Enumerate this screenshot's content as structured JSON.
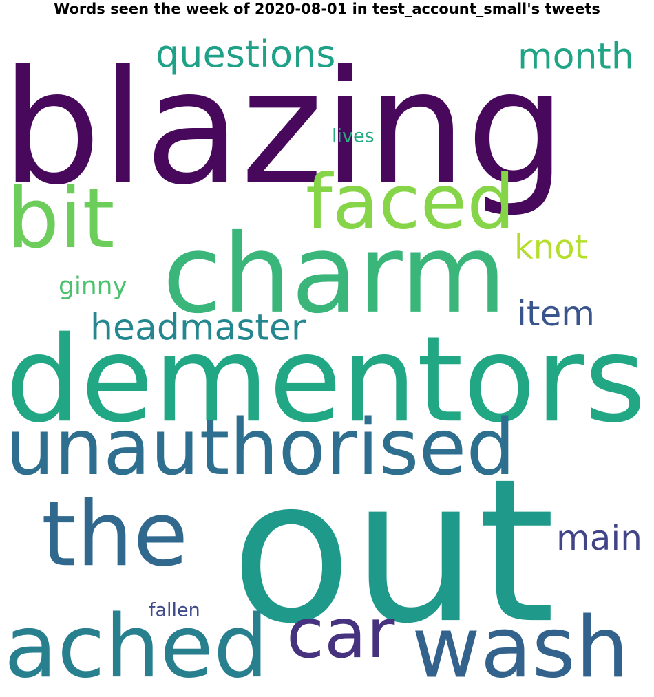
{
  "title": "Words seen the week of 2020-08-01 in test_account_small's tweets",
  "words": [
    {
      "text": "blazing",
      "color": "#48095d"
    },
    {
      "text": "out",
      "color": "#1f9a8a"
    },
    {
      "text": "dementors",
      "color": "#22a784"
    },
    {
      "text": "charm",
      "color": "#3bb67a"
    },
    {
      "text": "unauthorised",
      "color": "#2e6e8e"
    },
    {
      "text": "the",
      "color": "#31688e"
    },
    {
      "text": "ached",
      "color": "#287f8e"
    },
    {
      "text": "wash",
      "color": "#33638d"
    },
    {
      "text": "faced",
      "color": "#86d549"
    },
    {
      "text": "bit",
      "color": "#6ccd5a"
    },
    {
      "text": "car",
      "color": "#46327e"
    },
    {
      "text": "headmaster",
      "color": "#24868e"
    },
    {
      "text": "questions",
      "color": "#1fa187"
    },
    {
      "text": "month",
      "color": "#20a486"
    },
    {
      "text": "main",
      "color": "#414487"
    },
    {
      "text": "item",
      "color": "#39558c"
    },
    {
      "text": "knot",
      "color": "#b5de2b"
    },
    {
      "text": "ginny",
      "color": "#4ac16d"
    },
    {
      "text": "lives",
      "color": "#25ab82"
    },
    {
      "text": "fallen",
      "color": "#3e4a89"
    }
  ]
}
